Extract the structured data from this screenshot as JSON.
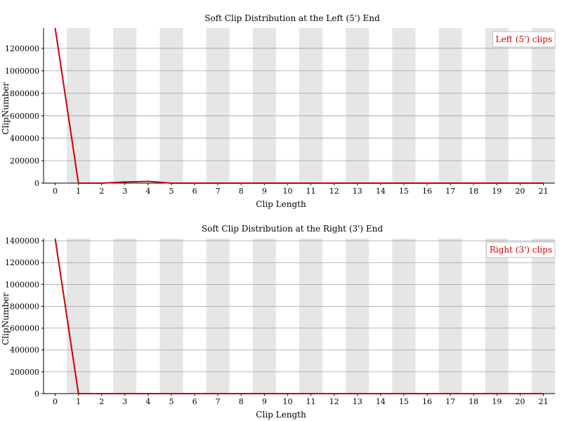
{
  "colors": {
    "series": "#cc0000",
    "band": "#e6e6e6",
    "grid": "#a0a0a0",
    "axis": "#000000",
    "legend_border": "#c0c0c0"
  },
  "chart_data": [
    {
      "type": "line",
      "title": "Soft Clip Distribution at the Left (5') End",
      "xlabel": "Clip Length",
      "ylabel": "ClipNumber",
      "x": [
        0,
        1,
        2,
        3,
        4,
        5,
        6,
        7,
        8,
        9,
        10,
        11,
        12,
        13,
        14,
        15,
        16,
        17,
        18,
        19,
        20,
        21
      ],
      "xlim": [
        -0.5,
        21.5
      ],
      "ylim": [
        0,
        1380000
      ],
      "yticks": [
        0,
        200000,
        400000,
        600000,
        800000,
        1000000,
        1200000
      ],
      "ytick_labels": [
        "0",
        "200000",
        "400000",
        "600000",
        "800000",
        "1000000",
        "1200000"
      ],
      "grid": true,
      "legend_position": "top-right",
      "series": [
        {
          "name": "Left (5') clips",
          "values": [
            1380000,
            0,
            0,
            10000,
            16000,
            0,
            0,
            0,
            0,
            0,
            0,
            0,
            0,
            0,
            0,
            0,
            0,
            0,
            0,
            0,
            0,
            0
          ]
        }
      ]
    },
    {
      "type": "line",
      "title": "Soft Clip Distribution at the Right (3') End",
      "xlabel": "Clip Length",
      "ylabel": "ClipNumber",
      "x": [
        0,
        1,
        2,
        3,
        4,
        5,
        6,
        7,
        8,
        9,
        10,
        11,
        12,
        13,
        14,
        15,
        16,
        17,
        18,
        19,
        20,
        21
      ],
      "xlim": [
        -0.5,
        21.5
      ],
      "ylim": [
        0,
        1420000
      ],
      "yticks": [
        0,
        200000,
        400000,
        600000,
        800000,
        1000000,
        1200000,
        1400000
      ],
      "ytick_labels": [
        "0",
        "200000",
        "400000",
        "600000",
        "800000",
        "1000000",
        "1200000",
        "1400000"
      ],
      "grid": true,
      "legend_position": "top-right",
      "series": [
        {
          "name": "Right (3') clips",
          "values": [
            1420000,
            0,
            0,
            0,
            0,
            0,
            0,
            0,
            0,
            0,
            0,
            0,
            0,
            0,
            0,
            0,
            0,
            0,
            0,
            0,
            0,
            0
          ]
        }
      ]
    }
  ]
}
